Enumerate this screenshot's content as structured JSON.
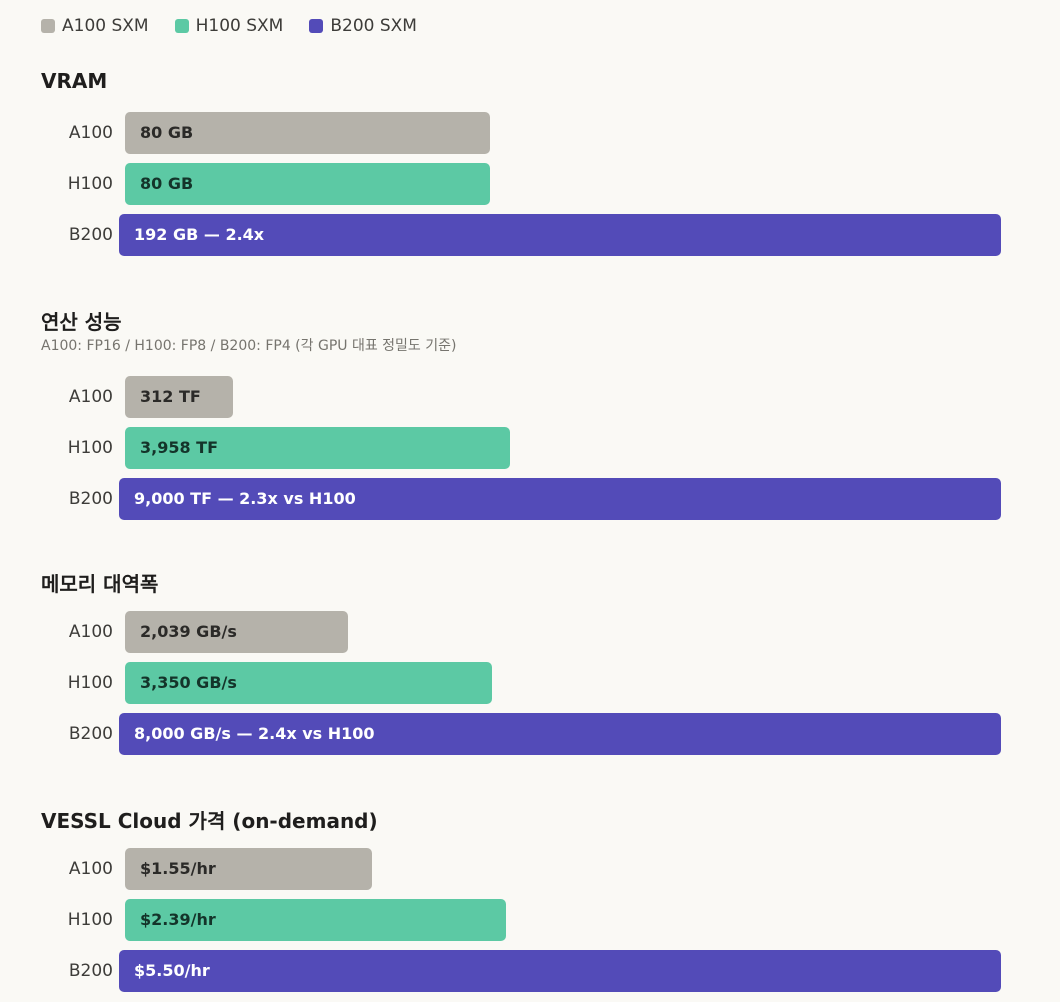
{
  "legend": [
    {
      "name": "A100 SXM",
      "color": "#b5b2aa"
    },
    {
      "name": "H100 SXM",
      "color": "#5cc9a4"
    },
    {
      "name": "B200 SXM",
      "color": "#534bb8"
    }
  ],
  "chart_data": [
    {
      "type": "bar",
      "orientation": "horizontal",
      "title": "VRAM",
      "subtitle": "",
      "unit": "GB",
      "categories": [
        "A100",
        "H100",
        "B200"
      ],
      "values": [
        80,
        80,
        192
      ],
      "value_labels": [
        "80 GB",
        "80 GB",
        "192 GB — 2.4x"
      ],
      "colors": [
        "#b5b2aa",
        "#5cc9a4",
        "#534bb8"
      ],
      "text_colors": [
        "#2b2a28",
        "#14342a",
        "#ffffff"
      ]
    },
    {
      "type": "bar",
      "orientation": "horizontal",
      "title": "연산 성능",
      "subtitle": "A100: FP16 / H100: FP8 / B200: FP4 (각 GPU 대표 정밀도 기준)",
      "unit": "TF",
      "categories": [
        "A100",
        "H100",
        "B200"
      ],
      "values": [
        312,
        3958,
        9000
      ],
      "value_labels": [
        "312 TF",
        "3,958 TF",
        "9,000 TF — 2.3x vs H100"
      ],
      "colors": [
        "#b5b2aa",
        "#5cc9a4",
        "#534bb8"
      ],
      "text_colors": [
        "#2b2a28",
        "#14342a",
        "#ffffff"
      ]
    },
    {
      "type": "bar",
      "orientation": "horizontal",
      "title": "메모리 대역폭",
      "subtitle": "",
      "unit": "GB/s",
      "categories": [
        "A100",
        "H100",
        "B200"
      ],
      "values": [
        2039,
        3350,
        8000
      ],
      "value_labels": [
        "2,039 GB/s",
        "3,350 GB/s",
        "8,000 GB/s — 2.4x vs H100"
      ],
      "colors": [
        "#b5b2aa",
        "#5cc9a4",
        "#534bb8"
      ],
      "text_colors": [
        "#2b2a28",
        "#14342a",
        "#ffffff"
      ]
    },
    {
      "type": "bar",
      "orientation": "horizontal",
      "title": "VESSL Cloud 가격 (on-demand)",
      "subtitle": "",
      "unit": "$/hr",
      "categories": [
        "A100",
        "H100",
        "B200"
      ],
      "values": [
        1.55,
        2.39,
        5.5
      ],
      "value_labels": [
        "$1.55/hr",
        "$2.39/hr",
        "$5.50/hr"
      ],
      "colors": [
        "#b5b2aa",
        "#5cc9a4",
        "#534bb8"
      ],
      "text_colors": [
        "#2b2a28",
        "#14342a",
        "#ffffff"
      ]
    }
  ]
}
